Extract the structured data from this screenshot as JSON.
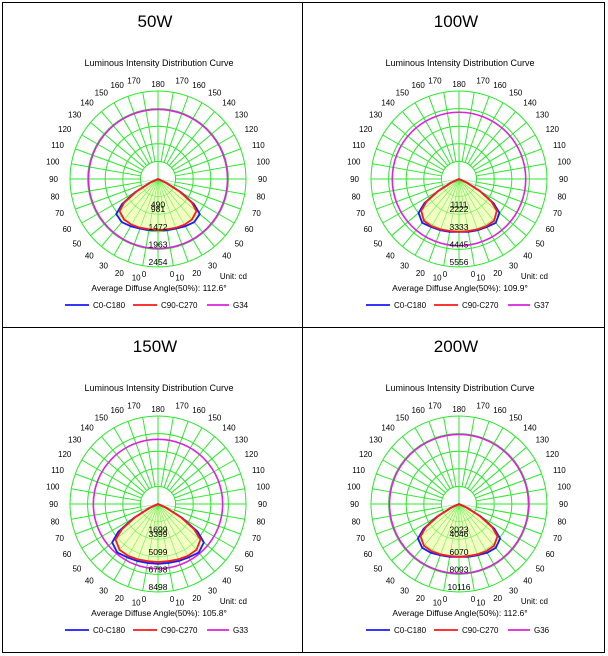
{
  "unit_label": "Unit: cd",
  "legend": {
    "c0": "C0-C180",
    "c90": "C90-C270"
  },
  "colors": {
    "c0": "#1a1aff",
    "c90": "#ff1a1a",
    "g": "#dd22dd",
    "grid": "#2ee82e",
    "fill": "#f3ffc2"
  },
  "chart_data": [
    {
      "type": "polar",
      "panel_title": "50W",
      "title": "Luminous Intensity Distribution Curve",
      "radial_labels": [
        "490",
        "981",
        "1472",
        "1963",
        "2454"
      ],
      "angle_labels": [
        0,
        10,
        20,
        30,
        40,
        50,
        60,
        70,
        80,
        90,
        100,
        110,
        120,
        130,
        140,
        150,
        160,
        170,
        180
      ],
      "average_angle": "Average Diffuse Angle(50%): 112.6°",
      "g_label": "G34",
      "g_radius": 1.0,
      "series": [
        {
          "name": "C0-C180",
          "angles": [
            0,
            10,
            20,
            30,
            40,
            50,
            55,
            60,
            65,
            70
          ],
          "values": [
            0.58,
            0.59,
            0.6,
            0.62,
            0.64,
            0.62,
            0.5,
            0.3,
            0.1,
            0.0
          ]
        },
        {
          "name": "C90-C270",
          "angles": [
            0,
            10,
            20,
            30,
            40,
            50,
            55,
            60,
            65,
            70
          ],
          "values": [
            0.58,
            0.58,
            0.59,
            0.6,
            0.6,
            0.57,
            0.47,
            0.28,
            0.09,
            0.0
          ]
        }
      ]
    },
    {
      "type": "polar",
      "panel_title": "100W",
      "title": "Luminous Intensity Distribution Curve",
      "radial_labels": [
        "1111",
        "2222",
        "3333",
        "4445",
        "5556"
      ],
      "angle_labels": [
        0,
        10,
        20,
        30,
        40,
        50,
        60,
        70,
        80,
        90,
        100,
        110,
        120,
        130,
        140,
        150,
        160,
        170,
        180
      ],
      "average_angle": "Average Diffuse Angle(50%): 109.9°",
      "g_label": "G37",
      "g_radius": 0.96,
      "series": [
        {
          "name": "C0-C180",
          "angles": [
            0,
            10,
            20,
            30,
            40,
            50,
            55,
            60,
            65,
            70
          ],
          "values": [
            0.6,
            0.61,
            0.62,
            0.63,
            0.65,
            0.6,
            0.48,
            0.28,
            0.1,
            0.0
          ]
        },
        {
          "name": "C90-C270",
          "angles": [
            0,
            10,
            20,
            30,
            40,
            50,
            55,
            60,
            65,
            70
          ],
          "values": [
            0.6,
            0.6,
            0.61,
            0.62,
            0.62,
            0.56,
            0.45,
            0.27,
            0.09,
            0.0
          ]
        }
      ]
    },
    {
      "type": "polar",
      "panel_title": "150W",
      "title": "Luminous Intensity Distribution Curve",
      "radial_labels": [
        "1699",
        "3399",
        "5099",
        "6798",
        "8498"
      ],
      "angle_labels": [
        0,
        10,
        20,
        30,
        40,
        50,
        60,
        70,
        80,
        90,
        100,
        110,
        120,
        130,
        140,
        150,
        160,
        170,
        180
      ],
      "average_angle": "Average Diffuse Angle(50%): 105.8°",
      "g_label": "G33",
      "g_radius": 0.93,
      "series": [
        {
          "name": "C0-C180",
          "angles": [
            0,
            10,
            20,
            30,
            40,
            50,
            55,
            60,
            65,
            70
          ],
          "values": [
            0.68,
            0.68,
            0.69,
            0.7,
            0.72,
            0.68,
            0.55,
            0.32,
            0.11,
            0.0
          ]
        },
        {
          "name": "C90-C270",
          "angles": [
            0,
            10,
            20,
            30,
            40,
            50,
            55,
            60,
            65,
            70
          ],
          "values": [
            0.66,
            0.66,
            0.67,
            0.68,
            0.68,
            0.63,
            0.5,
            0.3,
            0.1,
            0.0
          ]
        }
      ]
    },
    {
      "type": "polar",
      "panel_title": "200W",
      "title": "Luminous Intensity Distribution Curve",
      "radial_labels": [
        "2023",
        "4046",
        "6070",
        "8093",
        "10116"
      ],
      "angle_labels": [
        0,
        10,
        20,
        30,
        40,
        50,
        60,
        70,
        80,
        90,
        100,
        110,
        120,
        130,
        140,
        150,
        160,
        170,
        180
      ],
      "average_angle": "Average Diffuse Angle(50%): 112.6°",
      "g_label": "G36",
      "g_radius": 1.0,
      "series": [
        {
          "name": "C0-C180",
          "angles": [
            0,
            10,
            20,
            30,
            40,
            50,
            55,
            60,
            65,
            70
          ],
          "values": [
            0.6,
            0.61,
            0.62,
            0.64,
            0.65,
            0.61,
            0.49,
            0.29,
            0.1,
            0.0
          ]
        },
        {
          "name": "C90-C270",
          "angles": [
            0,
            10,
            20,
            30,
            40,
            50,
            55,
            60,
            65,
            70
          ],
          "values": [
            0.6,
            0.6,
            0.61,
            0.62,
            0.62,
            0.57,
            0.46,
            0.27,
            0.09,
            0.0
          ]
        }
      ]
    }
  ]
}
